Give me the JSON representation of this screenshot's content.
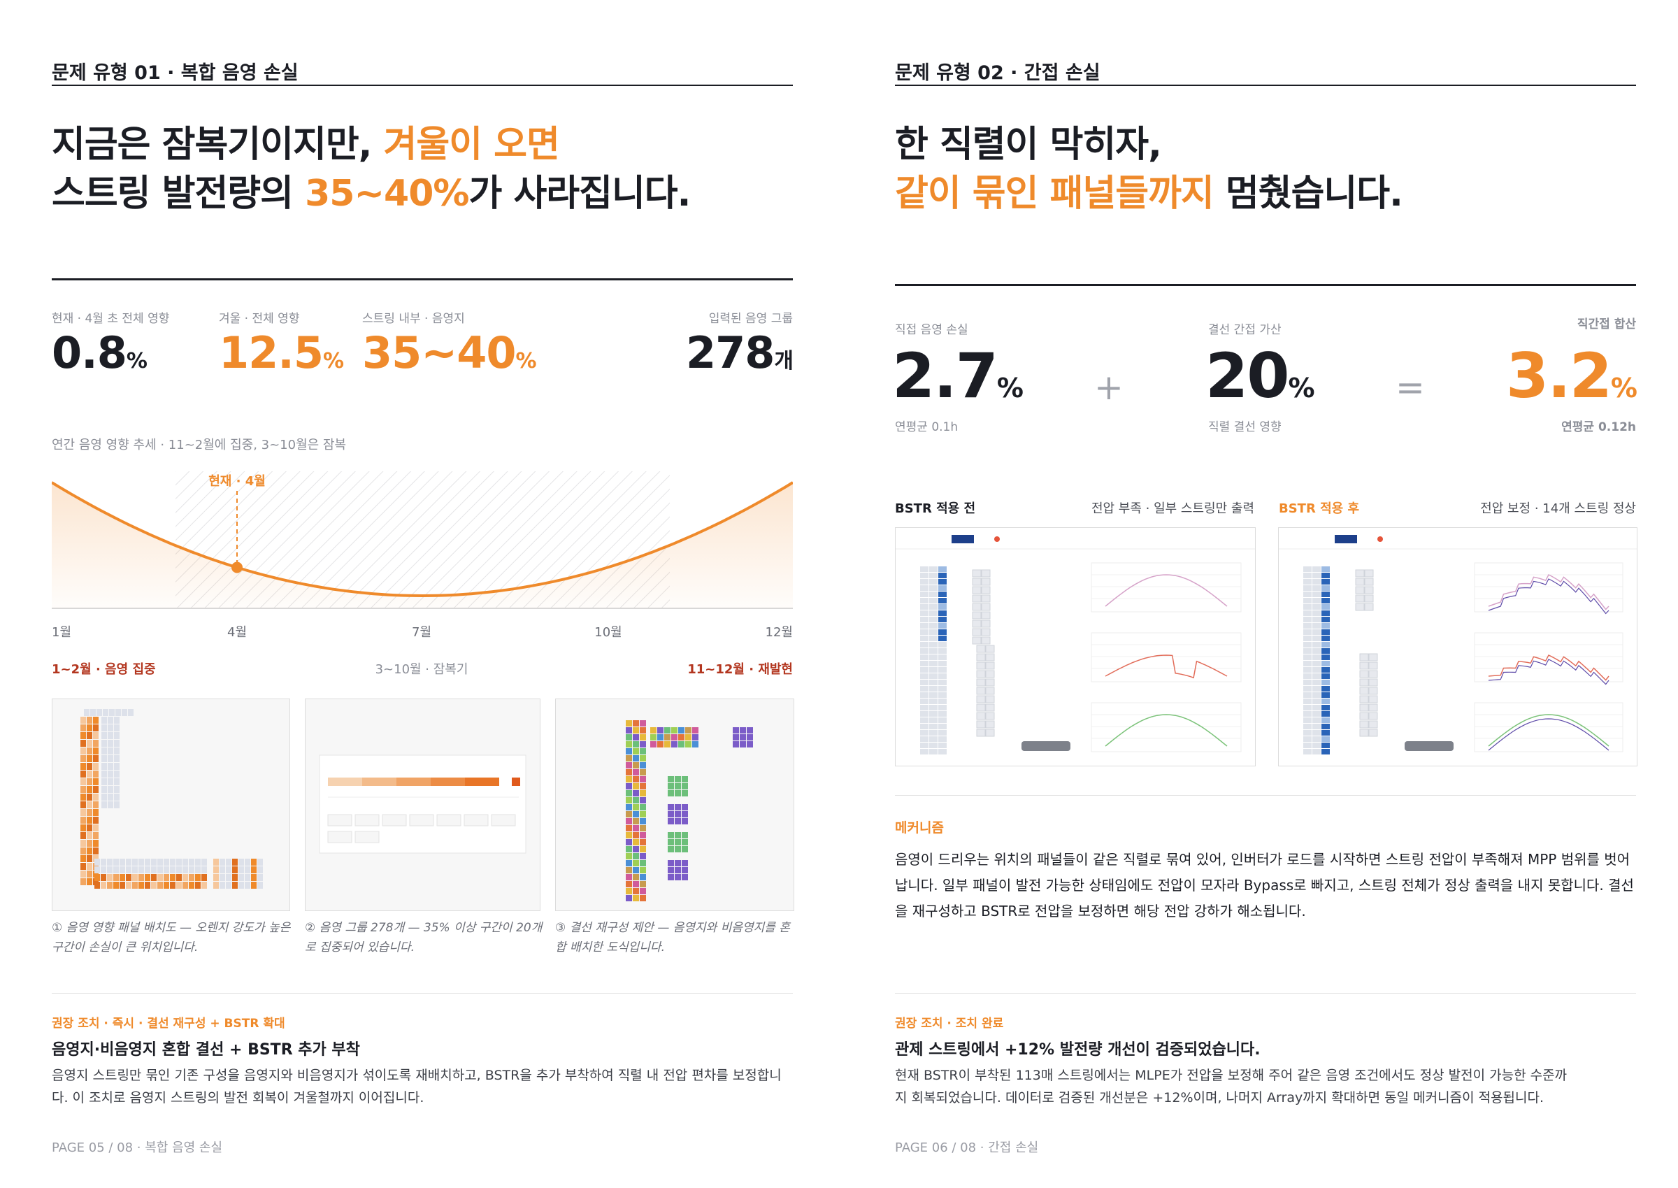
{
  "pages": [
    {
      "section_label": "문제 유형 01 · 복합 음영 손실",
      "headline": [
        [
          {
            "text": "지금은 잠복기이지만, ",
            "accent": false
          },
          {
            "text": "겨울이 오면",
            "accent": true
          }
        ],
        [
          {
            "text": "스트링 발전량의 ",
            "accent": false
          },
          {
            "text": "35~40%",
            "accent": true
          },
          {
            "text": "가 사라집니다.",
            "accent": false
          }
        ]
      ],
      "stats": [
        {
          "label": "현재 · 4월 초 전체 영향",
          "value": "0.8",
          "unit": "%",
          "accent": false
        },
        {
          "label": "겨울 · 전체 영향",
          "value": "12.5",
          "unit": "%",
          "accent": true
        },
        {
          "label": "스트링 내부 · 음영지",
          "value": "35~40",
          "unit": "%",
          "accent": true
        },
        {
          "label": "입력된 음영 그룹",
          "value": "278",
          "unit": "개",
          "accent": false
        }
      ],
      "trend": {
        "caption": "연간 음영 영향 추세 · 11~2월에 집중, 3~10월은 잠복",
        "current_label": "현재 · 4월",
        "months": [
          "1월",
          "4월",
          "7월",
          "10월",
          "12월"
        ],
        "periods": [
          "1~2월 · 음영 집중",
          "3~10월 · 잠복기",
          "11~12월 · 재발현"
        ]
      },
      "figures": [
        "① 음영 영향 패널 배치도 — 오렌지 강도가 높은 구간이 손실이 큰 위치입니다.",
        "② 음영 그룹 278개 — 35% 이상 구간이 20개로 집중되어 있습니다.",
        "③ 결선 재구성 제안 — 음영지와 비음영지를 혼합 배치한 도식입니다."
      ],
      "recommendation": {
        "label": "권장 조치 · 즉시 · 결선 재구성 + BSTR 확대",
        "heading": "음영지·비음영지 혼합 결선 + BSTR 추가 부착",
        "body": "음영지 스트링만 묶인 기존 구성을 음영지와 비음영지가 섞이도록 재배치하고, BSTR을 추가 부착하여 직렬 내 전압 편차를 보정합니다. 이 조치로 음영지 스트링의 발전 회복이 겨울철까지 이어집니다."
      },
      "footer": "PAGE 05 / 08 · 복합 음영 손실"
    },
    {
      "section_label": "문제 유형 02 · 간접 손실",
      "headline": [
        [
          {
            "text": "한 직렬이 막히자,",
            "accent": false
          }
        ],
        [
          {
            "text": "같이 묶인 패널들까지",
            "accent": true
          },
          {
            "text": " 멈췄습니다.",
            "accent": false
          }
        ]
      ],
      "stats": [
        {
          "label": "직접 음영 손실",
          "value": "2.7",
          "unit": "%",
          "sub": "연평균 0.1h",
          "accent": false
        },
        {
          "label": "결선 간접 가산",
          "value": "20",
          "unit": "%",
          "sub": "직렬 결선 영향",
          "accent": false
        },
        {
          "label": "직간접 합산",
          "value": "3.2",
          "unit": "%",
          "sub": "연평균 0.12h",
          "accent": true
        }
      ],
      "operators": [
        "+",
        "="
      ],
      "comparison": [
        {
          "label": "BSTR 적용 전",
          "note": "전압 부족 · 일부 스트링만 출력",
          "accent": false
        },
        {
          "label": "BSTR 적용 후",
          "note": "전압 보정 · 14개 스트링 정상",
          "accent": true
        }
      ],
      "mechanism": {
        "label": "메커니즘",
        "body": "음영이 드리우는 위치의 패널들이 같은 직렬로 묶여 있어, 인버터가 로드를 시작하면 스트링 전압이 부족해져 MPP 범위를 벗어납니다. 일부 패널이 발전 가능한 상태임에도 전압이 모자라 Bypass로 빠지고, 스트링 전체가 정상 출력을 내지 못합니다. 결선을 재구성하고 BSTR로 전압을 보정하면 해당 전압 강하가 해소됩니다."
      },
      "recommendation": {
        "label": "권장 조치 · 조치 완료",
        "heading": "관제 스트링에서 +12% 발전량 개선이 검증되었습니다.",
        "body": "현재 BSTR이 부착된 113매 스트링에서는 MLPE가 전압을 보정해 주어 같은 음영 조건에서도 정상 발전이 가능한 수준까지 회복되었습니다. 데이터로 검증된 개선분은 +12%이며, 나머지 Array까지 확대하면 동일 메커니즘이 적용됩니다."
      },
      "footer": "PAGE 06 / 08 · 간접 손실"
    }
  ]
}
